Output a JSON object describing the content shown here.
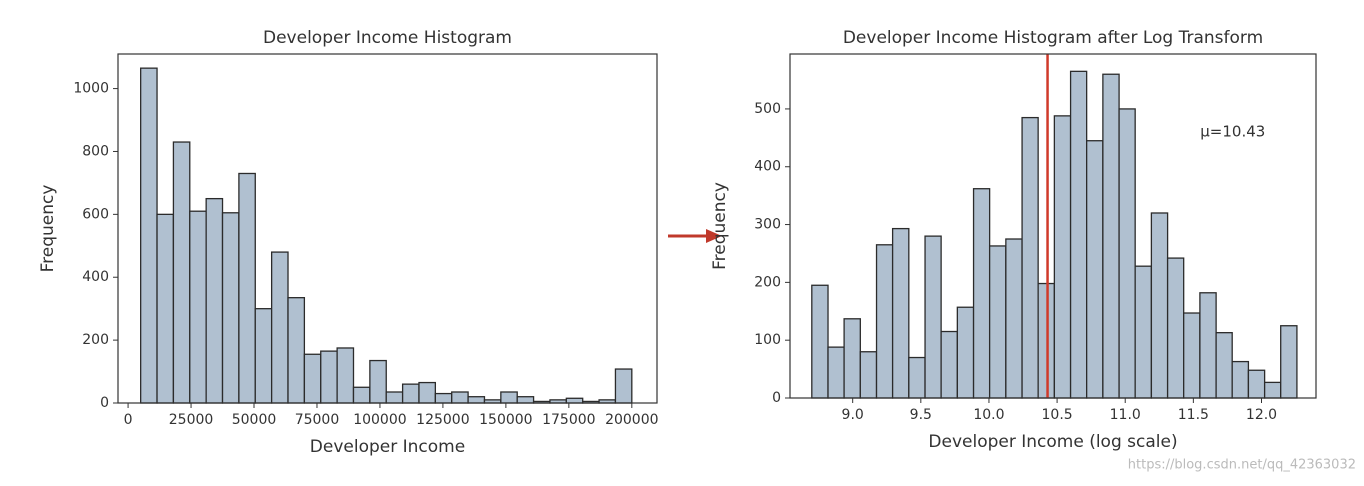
{
  "chart_data": [
    {
      "type": "histogram",
      "title": "Developer Income Histogram",
      "x_label": "Developer Income",
      "y_label": "Frequency",
      "color": "#b0c0d0",
      "bins": [
        5000,
        11500,
        18000,
        24500,
        31000,
        37500,
        44000,
        50500,
        57000,
        63500,
        70000,
        76500,
        83000,
        89500,
        96000,
        102500,
        109000,
        115500,
        122000,
        128500,
        135000,
        141500,
        148000,
        154500,
        161000,
        167500,
        174000,
        180500,
        187000,
        193500,
        200000
      ],
      "values": [
        1065,
        600,
        830,
        610,
        650,
        605,
        730,
        300,
        480,
        335,
        155,
        165,
        175,
        50,
        135,
        35,
        60,
        65,
        30,
        35,
        20,
        10,
        35,
        20,
        5,
        10,
        15,
        5,
        10,
        108
      ],
      "xlim": [
        -4000,
        210000
      ],
      "xticks": [
        0,
        25000,
        50000,
        75000,
        100000,
        125000,
        150000,
        175000,
        200000
      ],
      "ylim": [
        0,
        1110
      ],
      "yticks": [
        0,
        200,
        400,
        600,
        800,
        1000
      ]
    },
    {
      "type": "histogram",
      "title": "Developer Income Histogram after Log Transform",
      "x_label": "Developer Income (log scale)",
      "y_label": "Frequency",
      "color": "#b0c0d0",
      "bins": [
        8.7,
        8.819,
        8.937,
        9.056,
        9.175,
        9.293,
        9.412,
        9.531,
        9.649,
        9.768,
        9.887,
        10.005,
        10.124,
        10.243,
        10.361,
        10.48,
        10.599,
        10.717,
        10.836,
        10.955,
        11.073,
        11.192,
        11.311,
        11.429,
        11.548,
        11.667,
        11.785,
        11.904,
        12.023,
        12.141,
        12.26
      ],
      "values": [
        195,
        88,
        137,
        80,
        265,
        293,
        70,
        280,
        115,
        157,
        362,
        263,
        275,
        485,
        198,
        488,
        565,
        445,
        560,
        500,
        228,
        320,
        242,
        147,
        182,
        113,
        63,
        48,
        27,
        125
      ],
      "mean": 10.43,
      "mean_color": "#d03a2a",
      "annotation": "μ=10.43",
      "xlim": [
        8.54,
        12.4
      ],
      "xticks": [
        {
          "value": 9,
          "label": "9.0"
        },
        {
          "value": 9.5,
          "label": "9.5"
        },
        {
          "value": 10,
          "label": "10.0"
        },
        {
          "value": 10.5,
          "label": "10.5"
        },
        {
          "value": 11,
          "label": "11.0"
        },
        {
          "value": 11.5,
          "label": "11.5"
        },
        {
          "value": 12,
          "label": "12.0"
        }
      ],
      "ylim": [
        0,
        595
      ],
      "yticks": [
        0,
        100,
        200,
        300,
        400,
        500
      ]
    }
  ],
  "watermark": "https://blog.csdn.net/qq_42363032"
}
